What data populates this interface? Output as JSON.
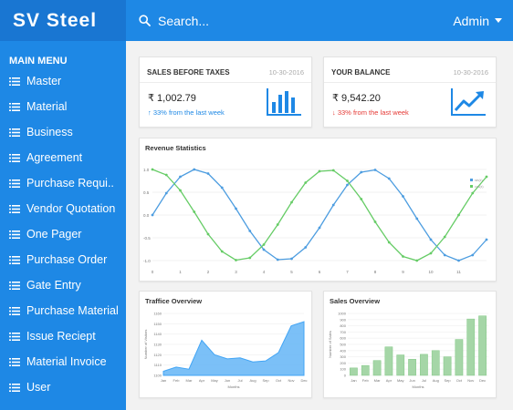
{
  "app": {
    "brand": "SV Steel"
  },
  "sidebar": {
    "menu_title": "MAIN MENU",
    "items": [
      {
        "label": "Master"
      },
      {
        "label": "Material"
      },
      {
        "label": "Business"
      },
      {
        "label": "Agreement"
      },
      {
        "label": "Purchase Requi.."
      },
      {
        "label": "Vendor Quotation"
      },
      {
        "label": "One Pager"
      },
      {
        "label": "Purchase Order"
      },
      {
        "label": "Gate Entry"
      },
      {
        "label": "Purchase Material"
      },
      {
        "label": "Issue Reciept"
      },
      {
        "label": "Material Invoice"
      },
      {
        "label": "User"
      }
    ]
  },
  "topbar": {
    "search_placeholder": "Search...",
    "user_label": "Admin"
  },
  "stats": [
    {
      "title": "SALES BEFORE TAXES",
      "date": "10-30-2016",
      "value": "₹ 1,002.79",
      "change": "33% from the last week",
      "direction": "up",
      "icon": "bar-chart-icon",
      "color": "#1e88e5"
    },
    {
      "title": "YOUR BALANCE",
      "date": "10-30-2016",
      "value": "₹ 9,542.20",
      "change": "33% from the last week",
      "direction": "down",
      "icon": "trend-up-icon",
      "color": "#e53935"
    }
  ],
  "colors": {
    "accent": "#1e88e5",
    "sidebar": "#1e88e5",
    "brand_bg": "#1976d2",
    "line_a": "#4d9de0",
    "line_b": "#66cc66"
  },
  "chart_data": [
    {
      "type": "line",
      "title": "Revenue Statistics",
      "x": [
        0,
        0.5,
        1,
        1.5,
        2,
        2.5,
        3,
        3.5,
        4,
        4.5,
        5,
        5.5,
        6,
        6.5,
        7,
        7.5,
        8,
        8.5,
        9,
        9.5,
        10,
        10.5,
        11,
        11.5,
        12
      ],
      "xticks": [
        "0",
        "1",
        "2",
        "3",
        "4",
        "5",
        "6",
        "7",
        "8",
        "9",
        "10",
        "11"
      ],
      "yticks": [
        "1.0",
        "0.5",
        "0.0",
        "-0.5",
        "-1.0"
      ],
      "ylim": [
        -1,
        1
      ],
      "legend_position": "top-right",
      "series": [
        {
          "name": "sin(x)",
          "color": "#4d9de0",
          "values": [
            0,
            0.48,
            0.84,
            1.0,
            0.91,
            0.6,
            0.14,
            -0.35,
            -0.76,
            -0.98,
            -0.96,
            -0.71,
            -0.28,
            0.22,
            0.66,
            0.94,
            0.99,
            0.8,
            0.41,
            -0.08,
            -0.54,
            -0.88,
            -1.0,
            -0.88,
            -0.54
          ]
        },
        {
          "name": "cos(x)",
          "color": "#66cc66",
          "values": [
            1.0,
            0.88,
            0.54,
            0.07,
            -0.42,
            -0.8,
            -0.99,
            -0.94,
            -0.65,
            -0.21,
            0.28,
            0.71,
            0.96,
            0.98,
            0.75,
            0.35,
            -0.15,
            -0.6,
            -0.91,
            -1.0,
            -0.84,
            -0.48,
            0.0,
            0.48,
            0.84
          ]
        }
      ]
    },
    {
      "type": "area",
      "title": "Traffice Overview",
      "xlabel": "Months",
      "ylabel": "Number of Visitors",
      "categories": [
        "Jan",
        "Feb",
        "Mar",
        "Apr",
        "May",
        "Jun",
        "Jul",
        "Aug",
        "Sep",
        "Oct",
        "Nov",
        "Dec"
      ],
      "yticks": [
        "1160",
        "1150",
        "1140",
        "1130",
        "1120",
        "1110",
        "1100"
      ],
      "ylim": [
        1100,
        1160
      ],
      "color": "#64b5f6",
      "series": [
        {
          "values": [
            1104,
            1108,
            1106,
            1134,
            1120,
            1116,
            1117,
            1113,
            1114,
            1122,
            1148,
            1152
          ]
        }
      ]
    },
    {
      "type": "bar",
      "title": "Sales Overview",
      "xlabel": "Months",
      "ylabel": "Number of Sales",
      "categories": [
        "Jan",
        "Feb",
        "Mar",
        "Apr",
        "May",
        "Jun",
        "Jul",
        "Aug",
        "Sep",
        "Oct",
        "Nov",
        "Dec"
      ],
      "yticks": [
        "1000",
        "900",
        "800",
        "700",
        "600",
        "500",
        "400",
        "300",
        "200",
        "100",
        "0"
      ],
      "ylim": [
        0,
        1000
      ],
      "color": "#a5d6a7",
      "series": [
        {
          "values": [
            120,
            160,
            240,
            460,
            330,
            260,
            340,
            400,
            300,
            580,
            910,
            960
          ]
        }
      ]
    }
  ]
}
